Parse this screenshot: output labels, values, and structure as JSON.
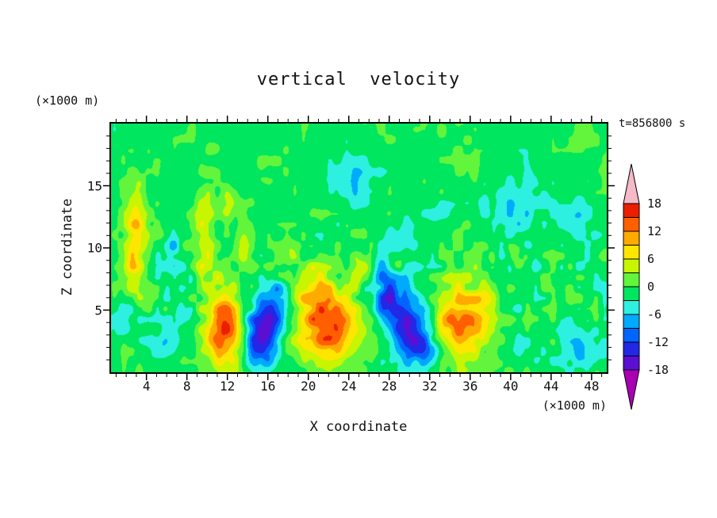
{
  "title": "vertical  velocity",
  "annotation": "t=856800 s",
  "axes": {
    "x": {
      "label": "X coordinate",
      "units": "(×1000 m)"
    },
    "z": {
      "label": "Z coordinate",
      "units": "(×1000 m)"
    }
  },
  "chart_data": {
    "type": "heatmap",
    "title": "vertical  velocity",
    "subtitle": "",
    "xlabel": "X coordinate",
    "ylabel": "Z coordinate",
    "x_units": "(×1000 m)",
    "z_units": "(×1000 m)",
    "time_annotation": "t=856800 s",
    "xlim": [
      0.5,
      49.5
    ],
    "zlim": [
      0,
      20
    ],
    "x_major_ticks": [
      4,
      8,
      12,
      16,
      20,
      24,
      28,
      32,
      36,
      40,
      44,
      48
    ],
    "x_minor_step": 1,
    "z_major_ticks": [
      5,
      10,
      15
    ],
    "z_minor_step": 1,
    "grid": false,
    "legend_position": "right-colorbar",
    "levels": [
      -18,
      -15,
      -12,
      -9,
      -6,
      -3,
      0,
      3,
      6,
      9,
      12,
      15,
      18
    ],
    "colors": [
      "#aa00b4",
      "#5a0fd2",
      "#2328e6",
      "#0064ff",
      "#00aaff",
      "#2df0e1",
      "#00e65f",
      "#62f53c",
      "#c8f500",
      "#ffe600",
      "#ffaa00",
      "#ff5f00",
      "#eb1e00",
      "#f5b9c8"
    ],
    "colorbar_labels": [
      "18",
      "12",
      "6",
      "0",
      "-6",
      "-12",
      "-18"
    ],
    "features": [
      {
        "x": 11.7,
        "z": 3.6,
        "sx": 1.25,
        "sz": 2.3,
        "a": 16
      },
      {
        "x": 15.4,
        "z": 2.9,
        "sx": 1.2,
        "sz": 1.9,
        "a": -15
      },
      {
        "x": 16.8,
        "z": 5.6,
        "sx": 0.9,
        "sz": 1.5,
        "a": -8
      },
      {
        "x": 22.0,
        "z": 3.8,
        "sx": 2.1,
        "sz": 2.1,
        "a": 16
      },
      {
        "x": 20.2,
        "z": 6.8,
        "sx": 1.4,
        "sz": 1.4,
        "a": 5
      },
      {
        "x": 28.2,
        "z": 5.8,
        "sx": 1.1,
        "sz": 1.8,
        "a": -12
      },
      {
        "x": 30.2,
        "z": 3.1,
        "sx": 1.25,
        "sz": 1.7,
        "a": -13
      },
      {
        "x": 27.2,
        "z": 8.6,
        "sx": 0.8,
        "sz": 1.2,
        "a": -6
      },
      {
        "x": 35.0,
        "z": 4.0,
        "sx": 1.8,
        "sz": 2.0,
        "a": 15
      },
      {
        "x": 37.6,
        "z": 6.2,
        "sx": 1.0,
        "sz": 1.2,
        "a": 5
      },
      {
        "x": 3.0,
        "z": 12.0,
        "sx": 0.75,
        "sz": 2.3,
        "a": 9
      },
      {
        "x": 2.6,
        "z": 8.0,
        "sx": 0.6,
        "sz": 1.4,
        "a": 5
      },
      {
        "x": 9.7,
        "z": 11.0,
        "sx": 0.8,
        "sz": 2.5,
        "a": 7
      },
      {
        "x": 13.6,
        "z": 10.3,
        "sx": 0.55,
        "sz": 1.3,
        "a": 5
      },
      {
        "x": 6.6,
        "z": 10.2,
        "sx": 0.55,
        "sz": 1.1,
        "a": -5
      },
      {
        "x": 12.1,
        "z": 13.6,
        "sx": 0.6,
        "sz": 1.0,
        "a": 4.5
      },
      {
        "x": 5.3,
        "z": 2.0,
        "sx": 1.0,
        "sz": 1.0,
        "a": -6
      },
      {
        "x": 1.6,
        "z": 4.6,
        "sx": 0.8,
        "sz": 1.2,
        "a": -5
      },
      {
        "x": 6.9,
        "z": 4.6,
        "sx": 0.6,
        "sz": 1.5,
        "a": -4
      },
      {
        "x": 32.2,
        "z": 1.8,
        "sx": 1.2,
        "sz": 0.9,
        "a": -6
      },
      {
        "x": 46.0,
        "z": 2.0,
        "sx": 2.4,
        "sz": 1.2,
        "a": -5
      },
      {
        "x": 44.3,
        "z": 2.1,
        "sx": 0.6,
        "sz": 0.7,
        "a": 5
      },
      {
        "x": 40.5,
        "z": 13.0,
        "sx": 2.0,
        "sz": 1.8,
        "a": -4.5
      },
      {
        "x": 46.6,
        "z": 12.0,
        "sx": 1.4,
        "sz": 1.5,
        "a": -4
      },
      {
        "x": 24.5,
        "z": 15.5,
        "sx": 2.0,
        "sz": 1.6,
        "a": -4
      },
      {
        "x": 29.6,
        "z": 10.6,
        "sx": 1.2,
        "sz": 1.2,
        "a": -4
      },
      {
        "x": 33.0,
        "z": 12.6,
        "sx": 1.0,
        "sz": 1.0,
        "a": -3.5
      },
      {
        "x": 25.3,
        "z": 8.2,
        "sx": 0.7,
        "sz": 0.8,
        "a": 4.5
      },
      {
        "x": 28.9,
        "z": 8.9,
        "sx": 0.6,
        "sz": 0.7,
        "a": 4.5
      },
      {
        "x": 40.6,
        "z": 9.3,
        "sx": 0.55,
        "sz": 0.7,
        "a": 4.5
      },
      {
        "x": 18.0,
        "z": 9.6,
        "sx": 0.5,
        "sz": 0.8,
        "a": 4
      }
    ],
    "noise": {
      "base": -0.9,
      "fine_scale": 0.85,
      "fine_amp": 1.5,
      "coarse_scale": 2.8,
      "coarse_amp": 1.1,
      "mid_boost": 1.3,
      "mid_center": 6.5,
      "mid_width": 4.5
    }
  }
}
